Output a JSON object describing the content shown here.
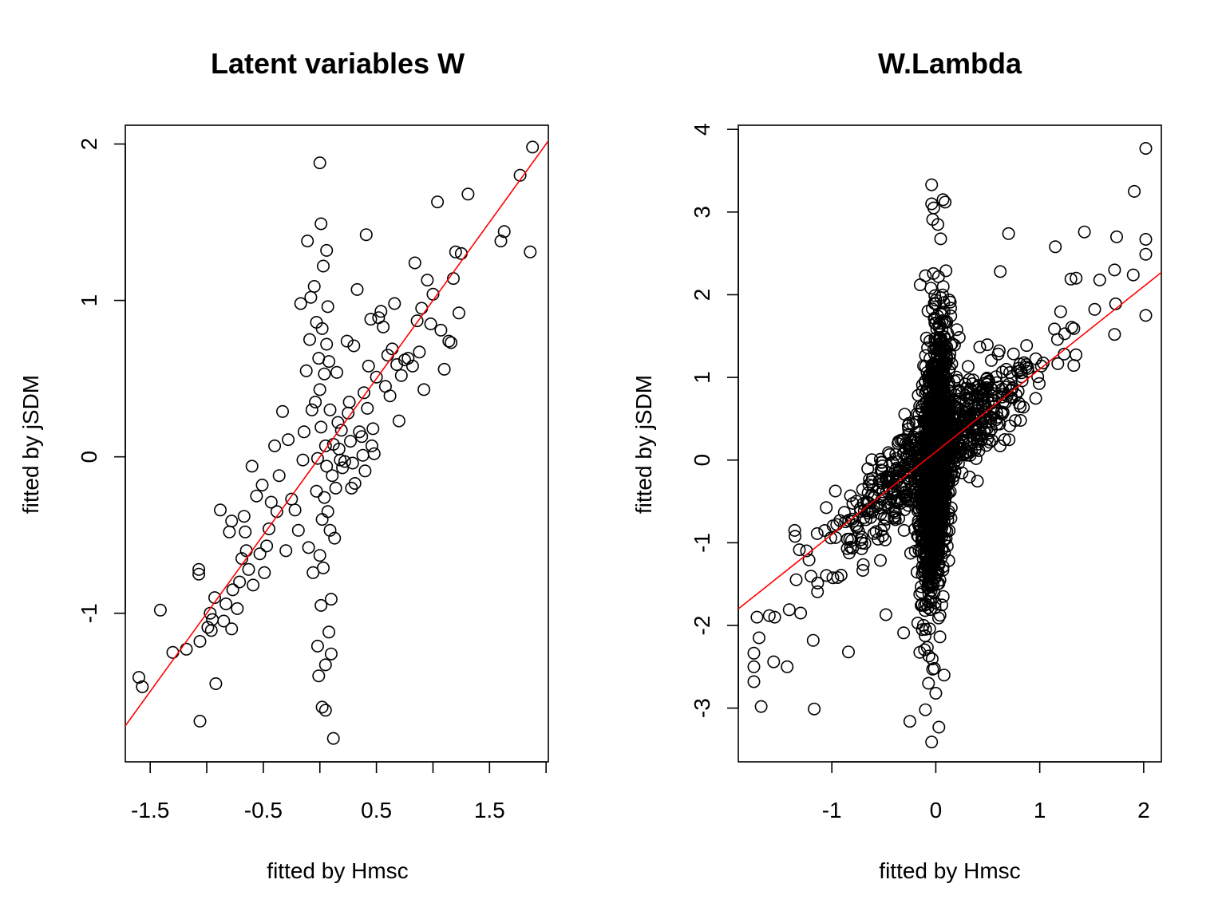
{
  "chart_data": [
    {
      "type": "scatter",
      "title": "Latent variables W",
      "xlabel": "fitted by Hmsc",
      "ylabel": "fitted by jSDM",
      "xlim": [
        -1.72,
        2.02
      ],
      "ylim": [
        -1.95,
        2.12
      ],
      "x_ticks": [
        -1.5,
        -1,
        -0.5,
        0,
        0.5,
        1,
        1.5,
        2
      ],
      "x_tick_labels": [
        "-1.5",
        "",
        "-0.5",
        "",
        "0.5",
        "",
        "1.5",
        ""
      ],
      "y_ticks": [
        -1,
        0,
        1,
        2
      ],
      "y_tick_labels": [
        "-1",
        "0",
        "1",
        "2"
      ],
      "reference_line": {
        "intercept": 0,
        "slope": 1,
        "color": "#ff0000"
      },
      "grid": false,
      "marker": "open-circle",
      "points": [
        [
          -1.6,
          -1.41
        ],
        [
          -1.57,
          -1.47
        ],
        [
          -1.41,
          -0.98
        ],
        [
          -1.3,
          -1.25
        ],
        [
          -1.18,
          -1.23
        ],
        [
          -1.07,
          -0.72
        ],
        [
          -1.07,
          -0.75
        ],
        [
          -1.06,
          -1.18
        ],
        [
          -1.06,
          -1.69
        ],
        [
          -0.99,
          -1.09
        ],
        [
          -0.97,
          -1.0
        ],
        [
          -0.96,
          -1.11
        ],
        [
          -0.95,
          -1.04
        ],
        [
          -0.93,
          -0.9
        ],
        [
          -0.92,
          -1.45
        ],
        [
          -0.88,
          -0.34
        ],
        [
          -0.85,
          -1.05
        ],
        [
          -0.83,
          -0.94
        ],
        [
          -0.8,
          -0.48
        ],
        [
          -0.78,
          -0.41
        ],
        [
          -0.78,
          -1.1
        ],
        [
          -0.77,
          -0.85
        ],
        [
          -0.73,
          -0.97
        ],
        [
          -0.71,
          -0.8
        ],
        [
          -0.69,
          -0.65
        ],
        [
          -0.67,
          -0.38
        ],
        [
          -0.66,
          -0.48
        ],
        [
          -0.65,
          -0.6
        ],
        [
          -0.63,
          -0.72
        ],
        [
          -0.6,
          -0.06
        ],
        [
          -0.59,
          -0.82
        ],
        [
          -0.56,
          -0.25
        ],
        [
          -0.53,
          -0.62
        ],
        [
          -0.51,
          -0.18
        ],
        [
          -0.49,
          -0.74
        ],
        [
          -0.47,
          -0.57
        ],
        [
          -0.45,
          -0.46
        ],
        [
          -0.43,
          -0.29
        ],
        [
          -0.4,
          0.07
        ],
        [
          -0.38,
          -0.35
        ],
        [
          -0.36,
          -0.12
        ],
        [
          -0.33,
          0.29
        ],
        [
          -0.3,
          -0.6
        ],
        [
          -0.28,
          0.11
        ],
        [
          -0.25,
          -0.27
        ],
        [
          -0.22,
          -0.34
        ],
        [
          -0.19,
          -0.47
        ],
        [
          -0.17,
          0.98
        ],
        [
          -0.15,
          -0.02
        ],
        [
          -0.14,
          0.16
        ],
        [
          -0.12,
          0.55
        ],
        [
          -0.11,
          1.38
        ],
        [
          -0.1,
          -0.58
        ],
        [
          -0.09,
          0.75
        ],
        [
          -0.08,
          1.02
        ],
        [
          -0.07,
          0.3
        ],
        [
          -0.06,
          -0.74
        ],
        [
          -0.05,
          1.09
        ],
        [
          -0.04,
          0.35
        ],
        [
          -0.03,
          0.86
        ],
        [
          -0.03,
          -0.22
        ],
        [
          -0.02,
          -0.01
        ],
        [
          -0.02,
          -1.21
        ],
        [
          -0.01,
          0.63
        ],
        [
          -0.01,
          -1.4
        ],
        [
          0.0,
          0.43
        ],
        [
          0.0,
          1.88
        ],
        [
          0.0,
          -0.63
        ],
        [
          0.01,
          1.49
        ],
        [
          0.01,
          -0.95
        ],
        [
          0.01,
          0.19
        ],
        [
          0.02,
          -1.6
        ],
        [
          0.02,
          0.82
        ],
        [
          0.02,
          -0.4
        ],
        [
          0.03,
          1.22
        ],
        [
          0.03,
          -0.71
        ],
        [
          0.04,
          0.53
        ],
        [
          0.04,
          -0.26
        ],
        [
          0.05,
          -1.62
        ],
        [
          0.05,
          0.07
        ],
        [
          0.05,
          -1.33
        ],
        [
          0.06,
          1.32
        ],
        [
          0.06,
          0.72
        ],
        [
          0.06,
          -0.06
        ],
        [
          0.07,
          -0.35
        ],
        [
          0.07,
          0.96
        ],
        [
          0.08,
          0.61
        ],
        [
          0.08,
          -1.12
        ],
        [
          0.09,
          -0.47
        ],
        [
          0.09,
          0.3
        ],
        [
          0.1,
          -1.26
        ],
        [
          0.1,
          -0.91
        ],
        [
          0.11,
          -0.12
        ],
        [
          0.12,
          -1.8
        ],
        [
          0.12,
          0.08
        ],
        [
          0.13,
          -0.52
        ],
        [
          0.14,
          -0.2
        ],
        [
          0.15,
          0.54
        ],
        [
          0.16,
          0.22
        ],
        [
          0.17,
          0.05
        ],
        [
          0.18,
          -0.02
        ],
        [
          0.19,
          0.17
        ],
        [
          0.2,
          -0.07
        ],
        [
          0.22,
          -0.03
        ],
        [
          0.24,
          0.74
        ],
        [
          0.25,
          0.28
        ],
        [
          0.26,
          0.35
        ],
        [
          0.27,
          0.1
        ],
        [
          0.28,
          -0.2
        ],
        [
          0.29,
          -0.04
        ],
        [
          0.3,
          0.71
        ],
        [
          0.31,
          -0.17
        ],
        [
          0.33,
          1.07
        ],
        [
          0.35,
          0.16
        ],
        [
          0.37,
          0.13
        ],
        [
          0.38,
          0.01
        ],
        [
          0.39,
          0.41
        ],
        [
          0.4,
          -0.09
        ],
        [
          0.41,
          1.42
        ],
        [
          0.42,
          0.31
        ],
        [
          0.43,
          0.58
        ],
        [
          0.45,
          0.88
        ],
        [
          0.46,
          0.07
        ],
        [
          0.47,
          0.18
        ],
        [
          0.48,
          0.02
        ],
        [
          0.5,
          0.51
        ],
        [
          0.52,
          0.89
        ],
        [
          0.54,
          0.93
        ],
        [
          0.56,
          0.83
        ],
        [
          0.58,
          0.45
        ],
        [
          0.6,
          0.65
        ],
        [
          0.62,
          0.39
        ],
        [
          0.64,
          0.69
        ],
        [
          0.66,
          0.98
        ],
        [
          0.68,
          0.59
        ],
        [
          0.7,
          0.23
        ],
        [
          0.72,
          0.52
        ],
        [
          0.75,
          0.62
        ],
        [
          0.78,
          0.63
        ],
        [
          0.82,
          0.58
        ],
        [
          0.84,
          1.24
        ],
        [
          0.86,
          0.87
        ],
        [
          0.88,
          0.67
        ],
        [
          0.9,
          0.95
        ],
        [
          0.92,
          0.43
        ],
        [
          0.95,
          1.13
        ],
        [
          0.98,
          0.85
        ],
        [
          1.0,
          1.04
        ],
        [
          1.04,
          1.63
        ],
        [
          1.07,
          0.81
        ],
        [
          1.1,
          0.56
        ],
        [
          1.14,
          0.74
        ],
        [
          1.16,
          0.73
        ],
        [
          1.18,
          1.14
        ],
        [
          1.2,
          1.31
        ],
        [
          1.23,
          0.92
        ],
        [
          1.25,
          1.3
        ],
        [
          1.31,
          1.68
        ],
        [
          1.6,
          1.38
        ],
        [
          1.63,
          1.44
        ],
        [
          1.77,
          1.8
        ],
        [
          1.86,
          1.31
        ],
        [
          1.88,
          1.98
        ]
      ]
    },
    {
      "type": "scatter",
      "title": "W.Lambda",
      "xlabel": "fitted by Hmsc",
      "ylabel": "fitted by jSDM",
      "xlim": [
        -1.9,
        2.17
      ],
      "ylim": [
        -3.65,
        4.05
      ],
      "x_ticks": [
        -1,
        0,
        1,
        2
      ],
      "x_tick_labels": [
        "-1",
        "0",
        "1",
        "2"
      ],
      "y_ticks": [
        -3,
        -2,
        -1,
        0,
        1,
        2,
        3,
        4
      ],
      "y_tick_labels": [
        "-3",
        "-2",
        "-1",
        "0",
        "1",
        "2",
        "3",
        "4"
      ],
      "reference_line": {
        "intercept": 0.1,
        "slope": 1,
        "color": "#ff0000"
      },
      "grid": false,
      "marker": "open-circle"
    }
  ]
}
